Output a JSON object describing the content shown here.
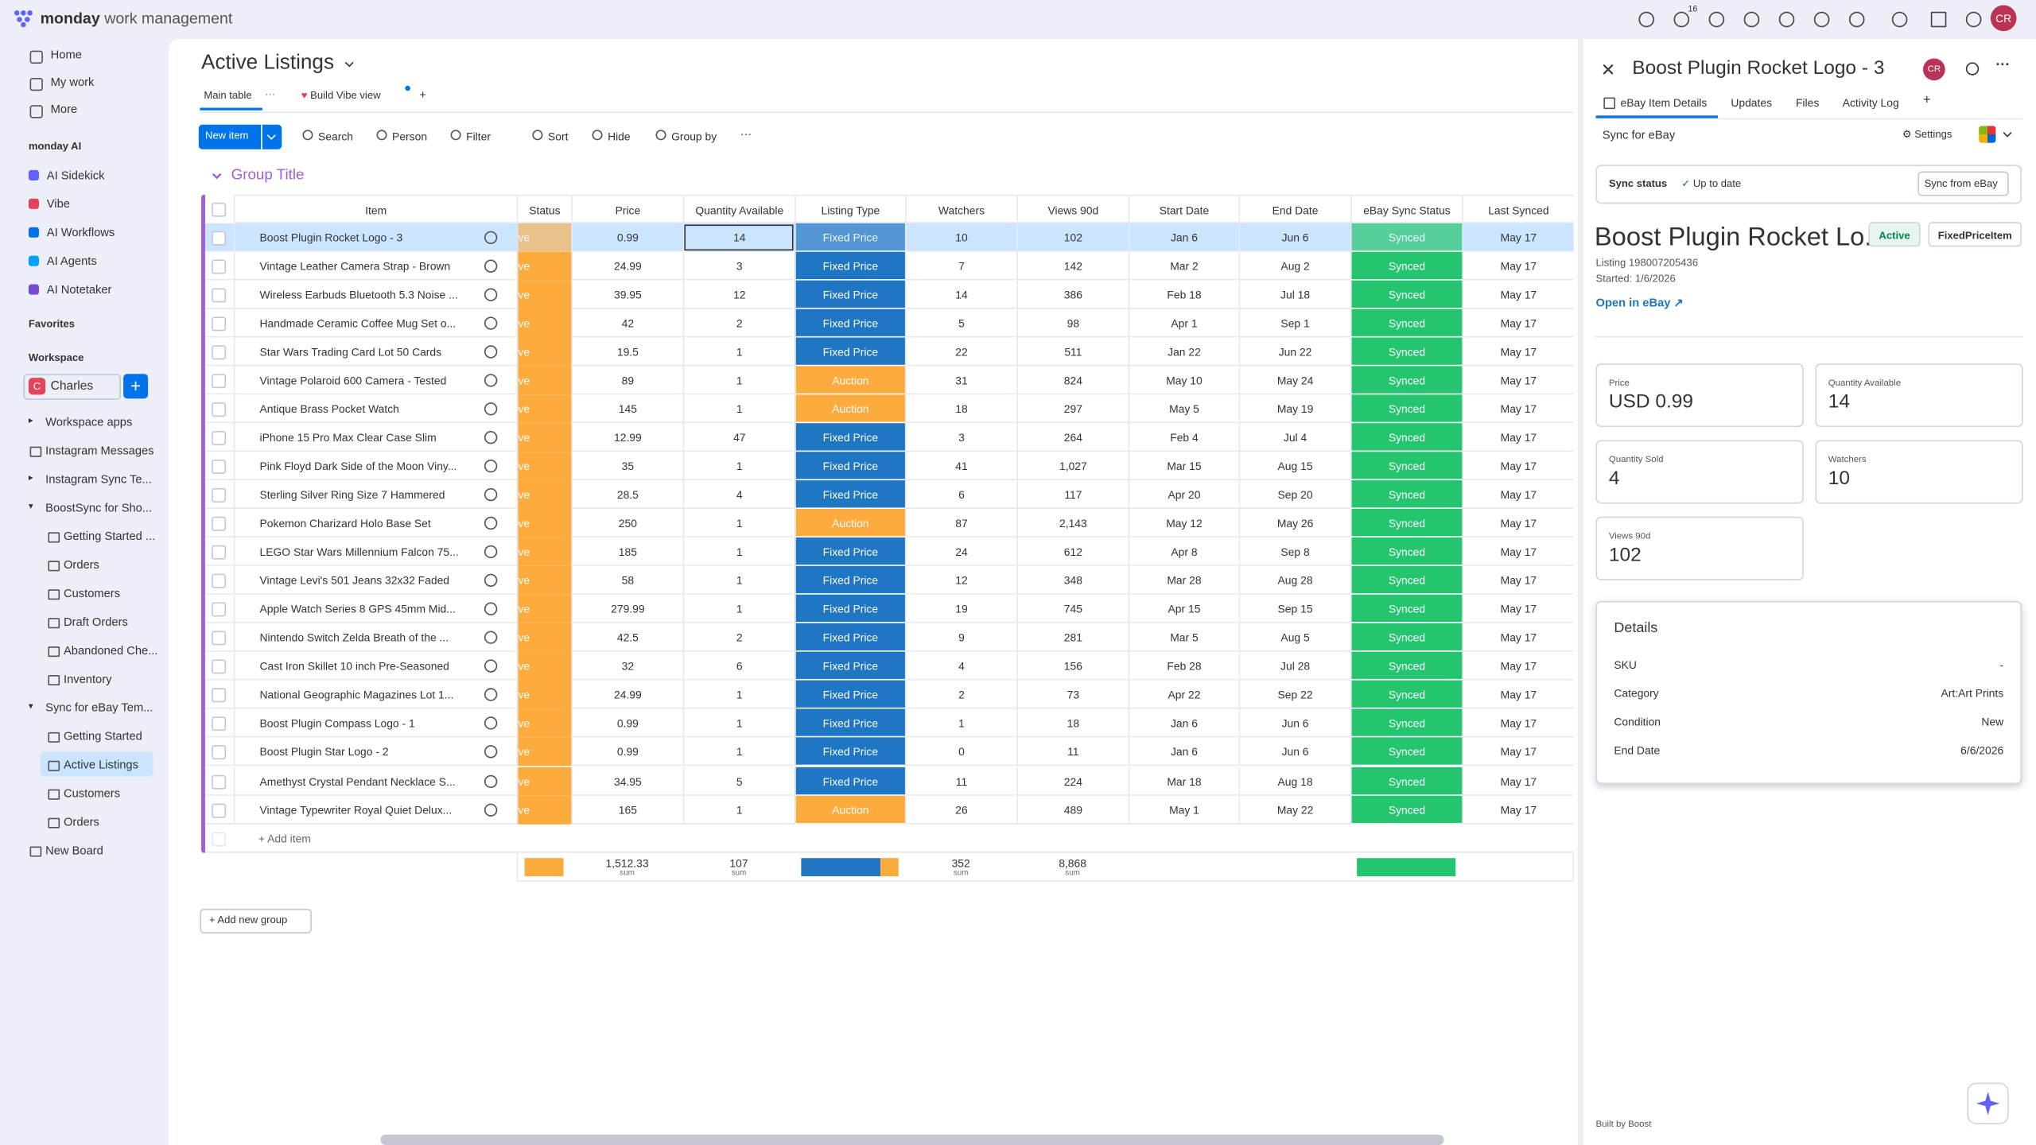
{
  "topbar": {
    "brand": "monday",
    "product": "work management",
    "inbox_badge": 16,
    "avatar": "CR"
  },
  "sidebar": {
    "nav": [
      "Home",
      "My work",
      "More"
    ],
    "ai_title": "monday AI",
    "ai": [
      "AI Sidekick",
      "Vibe",
      "AI Workflows",
      "AI Agents",
      "AI Notetaker"
    ],
    "favorites": "Favorites",
    "workspace_label": "Workspace",
    "workspace_initial": "C",
    "workspace": "Charles",
    "tree": [
      {
        "label": "Workspace apps",
        "expanded": false
      },
      {
        "label": "Instagram Messages"
      },
      {
        "label": "Instagram Sync Te...",
        "expanded": false
      },
      {
        "label": "BoostSync for Sho...",
        "expanded": true,
        "children": [
          {
            "label": "Getting Started ..."
          },
          {
            "label": "Orders"
          },
          {
            "label": "Customers"
          },
          {
            "label": "Draft Orders"
          },
          {
            "label": "Abandoned Che..."
          },
          {
            "label": "Inventory"
          }
        ]
      },
      {
        "label": "Sync for eBay Tem...",
        "expanded": true,
        "children": [
          {
            "label": "Getting Started"
          },
          {
            "label": "Active Listings",
            "selected": true
          },
          {
            "label": "Customers"
          },
          {
            "label": "Orders"
          }
        ]
      },
      {
        "label": "New Board"
      }
    ]
  },
  "board": {
    "title": "Active Listings",
    "tabs": [
      "Main table",
      "Build Vibe view"
    ],
    "toolbar": {
      "new_item": "New item",
      "actions": [
        "Search",
        "Person",
        "Filter",
        "Sort",
        "Hide",
        "Group by"
      ]
    },
    "group_title": "Group Title",
    "add_item": "+ Add item",
    "add_group": "Add new group"
  },
  "table": {
    "columns": [
      "Item",
      "Status",
      "Price",
      "Quantity Available",
      "Listing Type",
      "Watchers",
      "Views 90d",
      "Start Date",
      "End Date",
      "eBay Sync Status",
      "Last Synced"
    ],
    "colors": {
      "status": "#fdab3d",
      "Fixed Price": "#1f76c2",
      "Auction": "#fdab3d",
      "Synced": "#25c56f"
    },
    "selected_row": 0,
    "rows": [
      [
        "Boost Plugin Rocket Logo - 3",
        "ve",
        0.99,
        14,
        "Fixed Price",
        10,
        102,
        "Jan 6",
        "Jun 6",
        "Synced",
        "May 17"
      ],
      [
        "Vintage Leather Camera Strap - Brown",
        "ve",
        24.99,
        3,
        "Fixed Price",
        7,
        142,
        "Mar 2",
        "Aug 2",
        "Synced",
        "May 17"
      ],
      [
        "Wireless Earbuds Bluetooth 5.3 Noise ...",
        "ve",
        39.95,
        12,
        "Fixed Price",
        14,
        386,
        "Feb 18",
        "Jul 18",
        "Synced",
        "May 17"
      ],
      [
        "Handmade Ceramic Coffee Mug Set o...",
        "ve",
        42,
        2,
        "Fixed Price",
        5,
        98,
        "Apr 1",
        "Sep 1",
        "Synced",
        "May 17"
      ],
      [
        "Star Wars Trading Card Lot 50 Cards",
        "ve",
        19.5,
        1,
        "Fixed Price",
        22,
        511,
        "Jan 22",
        "Jun 22",
        "Synced",
        "May 17"
      ],
      [
        "Vintage Polaroid 600 Camera - Tested",
        "ve",
        89,
        1,
        "Auction",
        31,
        824,
        "May 10",
        "May 24",
        "Synced",
        "May 17"
      ],
      [
        "Antique Brass Pocket Watch",
        "ve",
        145,
        1,
        "Auction",
        18,
        297,
        "May 5",
        "May 19",
        "Synced",
        "May 17"
      ],
      [
        "iPhone 15 Pro Max Clear Case Slim",
        "ve",
        12.99,
        47,
        "Fixed Price",
        3,
        264,
        "Feb 4",
        "Jul 4",
        "Synced",
        "May 17"
      ],
      [
        "Pink Floyd Dark Side of the Moon Viny...",
        "ve",
        35,
        1,
        "Fixed Price",
        41,
        "1,027",
        "Mar 15",
        "Aug 15",
        "Synced",
        "May 17"
      ],
      [
        "Sterling Silver Ring Size 7 Hammered",
        "ve",
        28.5,
        4,
        "Fixed Price",
        6,
        117,
        "Apr 20",
        "Sep 20",
        "Synced",
        "May 17"
      ],
      [
        "Pokemon Charizard Holo Base Set",
        "ve",
        250,
        1,
        "Auction",
        87,
        "2,143",
        "May 12",
        "May 26",
        "Synced",
        "May 17"
      ],
      [
        "LEGO Star Wars Millennium Falcon 75...",
        "ve",
        185,
        1,
        "Fixed Price",
        24,
        612,
        "Apr 8",
        "Sep 8",
        "Synced",
        "May 17"
      ],
      [
        "Vintage Levi's 501 Jeans 32x32 Faded",
        "ve",
        58,
        1,
        "Fixed Price",
        12,
        348,
        "Mar 28",
        "Aug 28",
        "Synced",
        "May 17"
      ],
      [
        "Apple Watch Series 8 GPS 45mm Mid...",
        "ve",
        279.99,
        1,
        "Fixed Price",
        19,
        745,
        "Apr 15",
        "Sep 15",
        "Synced",
        "May 17"
      ],
      [
        "Nintendo Switch Zelda Breath of the ...",
        "ve",
        42.5,
        2,
        "Fixed Price",
        9,
        281,
        "Mar 5",
        "Aug 5",
        "Synced",
        "May 17"
      ],
      [
        "Cast Iron Skillet 10 inch Pre-Seasoned",
        "ve",
        32,
        6,
        "Fixed Price",
        4,
        156,
        "Feb 28",
        "Jul 28",
        "Synced",
        "May 17"
      ],
      [
        "National Geographic Magazines Lot 1...",
        "ve",
        24.99,
        1,
        "Fixed Price",
        2,
        73,
        "Apr 22",
        "Sep 22",
        "Synced",
        "May 17"
      ],
      [
        "Boost Plugin Compass Logo - 1",
        "ve",
        0.99,
        1,
        "Fixed Price",
        1,
        18,
        "Jan 6",
        "Jun 6",
        "Synced",
        "May 17"
      ],
      [
        "Boost Plugin Star Logo - 2",
        "ve",
        0.99,
        1,
        "Fixed Price",
        0,
        11,
        "Jan 6",
        "Jun 6",
        "Synced",
        "May 17"
      ],
      [
        "Amethyst Crystal Pendant Necklace S...",
        "ve",
        34.95,
        5,
        "Fixed Price",
        11,
        224,
        "Mar 18",
        "Aug 18",
        "Synced",
        "May 17"
      ],
      [
        "Vintage Typewriter Royal Quiet Delux...",
        "ve",
        165,
        1,
        "Auction",
        26,
        489,
        "May 1",
        "May 22",
        "Synced",
        "May 17"
      ]
    ],
    "summary": {
      "price": {
        "value": "1,512.33",
        "label": "sum"
      },
      "quantity": {
        "value": 107,
        "label": "sum"
      },
      "watchers": {
        "value": 352,
        "label": "sum"
      },
      "views": {
        "value": "8,868",
        "label": "sum"
      }
    }
  },
  "panel": {
    "title": "Boost Plugin Rocket Logo - 3",
    "avatar": "CR",
    "tabs": [
      "eBay Item Details",
      "Updates",
      "Files",
      "Activity Log"
    ],
    "app": "Sync for eBay",
    "settings": "Settings",
    "sync_label": "Sync status",
    "sync_state": "Up to date",
    "sync_button": "Sync from eBay",
    "heading": "Boost Plugin Rocket Lo...",
    "badges": [
      "Active",
      "FixedPriceItem"
    ],
    "listing": "Listing 198007205436",
    "started": "Started: 1/6/2026",
    "open_link": "Open in eBay",
    "stats": [
      {
        "label": "Price",
        "value": "USD 0.99"
      },
      {
        "label": "Quantity Available",
        "value": 14
      },
      {
        "label": "Quantity Sold",
        "value": 4
      },
      {
        "label": "Watchers",
        "value": 10
      },
      {
        "label": "Views 90d",
        "value": 102
      }
    ],
    "details_title": "Details",
    "details": [
      {
        "label": "SKU",
        "value": "-"
      },
      {
        "label": "Category",
        "value": "Art:Art Prints"
      },
      {
        "label": "Condition",
        "value": "New"
      },
      {
        "label": "End Date",
        "value": "6/6/2026"
      }
    ],
    "footer": "Built by Boost"
  }
}
